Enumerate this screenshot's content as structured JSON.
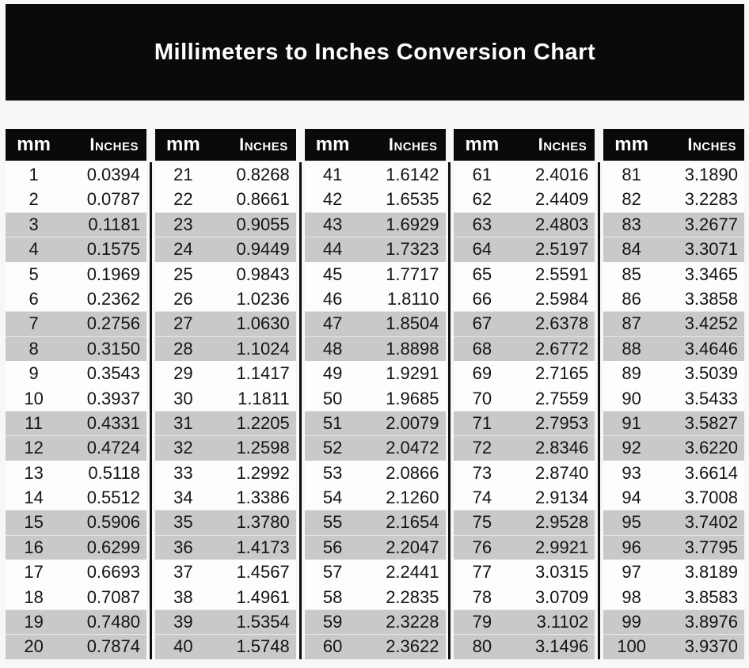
{
  "title": "Millimeters to Inches Conversion Chart",
  "column_headers": {
    "mm": "mm",
    "inches": "Inches"
  },
  "colors": {
    "banner_bg": "#0a0a0a",
    "header_bg": "#0a0a0a",
    "row_plain": "#fdfdfd",
    "row_shaded": "#c8c9cb",
    "divider": "#101010",
    "page_bg": "#f8f7f5",
    "title_text": "#ffffff",
    "cell_text": "#141414"
  },
  "chart_data": {
    "type": "table",
    "title": "Millimeters to Inches Conversion Chart",
    "columns": [
      "mm",
      "Inches"
    ],
    "layout": {
      "group_count": 5,
      "rows_per_group": 20,
      "shading_pattern": "alternating pairs of rows shaded gray (rows 3-4, 7-8, 11-12, 15-16, 19-20 of each group)"
    },
    "groups": [
      {
        "mm": [
          1,
          2,
          3,
          4,
          5,
          6,
          7,
          8,
          9,
          10,
          11,
          12,
          13,
          14,
          15,
          16,
          17,
          18,
          19,
          20
        ],
        "inches": [
          "0.0394",
          "0.0787",
          "0.1181",
          "0.1575",
          "0.1969",
          "0.2362",
          "0.2756",
          "0.3150",
          "0.3543",
          "0.3937",
          "0.4331",
          "0.4724",
          "0.5118",
          "0.5512",
          "0.5906",
          "0.6299",
          "0.6693",
          "0.7087",
          "0.7480",
          "0.7874"
        ]
      },
      {
        "mm": [
          21,
          22,
          23,
          24,
          25,
          26,
          27,
          28,
          29,
          30,
          31,
          32,
          33,
          34,
          35,
          36,
          37,
          38,
          39,
          40
        ],
        "inches": [
          "0.8268",
          "0.8661",
          "0.9055",
          "0.9449",
          "0.9843",
          "1.0236",
          "1.0630",
          "1.1024",
          "1.1417",
          "1.1811",
          "1.2205",
          "1.2598",
          "1.2992",
          "1.3386",
          "1.3780",
          "1.4173",
          "1.4567",
          "1.4961",
          "1.5354",
          "1.5748"
        ]
      },
      {
        "mm": [
          41,
          42,
          43,
          44,
          45,
          46,
          47,
          48,
          49,
          50,
          51,
          52,
          53,
          54,
          55,
          56,
          57,
          58,
          59,
          60
        ],
        "inches": [
          "1.6142",
          "1.6535",
          "1.6929",
          "1.7323",
          "1.7717",
          "1.8110",
          "1.8504",
          "1.8898",
          "1.9291",
          "1.9685",
          "2.0079",
          "2.0472",
          "2.0866",
          "2.1260",
          "2.1654",
          "2.2047",
          "2.2441",
          "2.2835",
          "2.3228",
          "2.3622"
        ]
      },
      {
        "mm": [
          61,
          62,
          63,
          64,
          65,
          66,
          67,
          68,
          69,
          70,
          71,
          72,
          73,
          74,
          75,
          76,
          77,
          78,
          79,
          80
        ],
        "inches": [
          "2.4016",
          "2.4409",
          "2.4803",
          "2.5197",
          "2.5591",
          "2.5984",
          "2.6378",
          "2.6772",
          "2.7165",
          "2.7559",
          "2.7953",
          "2.8346",
          "2.8740",
          "2.9134",
          "2.9528",
          "2.9921",
          "3.0315",
          "3.0709",
          "3.1102",
          "3.1496"
        ]
      },
      {
        "mm": [
          81,
          82,
          83,
          84,
          85,
          86,
          87,
          88,
          89,
          90,
          91,
          92,
          93,
          94,
          95,
          96,
          97,
          98,
          99,
          100
        ],
        "inches": [
          "3.1890",
          "3.2283",
          "3.2677",
          "3.3071",
          "3.3465",
          "3.3858",
          "3.4252",
          "3.4646",
          "3.5039",
          "3.5433",
          "3.5827",
          "3.6220",
          "3.6614",
          "3.7008",
          "3.7402",
          "3.7795",
          "3.8189",
          "3.8583",
          "3.8976",
          "3.9370"
        ]
      }
    ]
  }
}
